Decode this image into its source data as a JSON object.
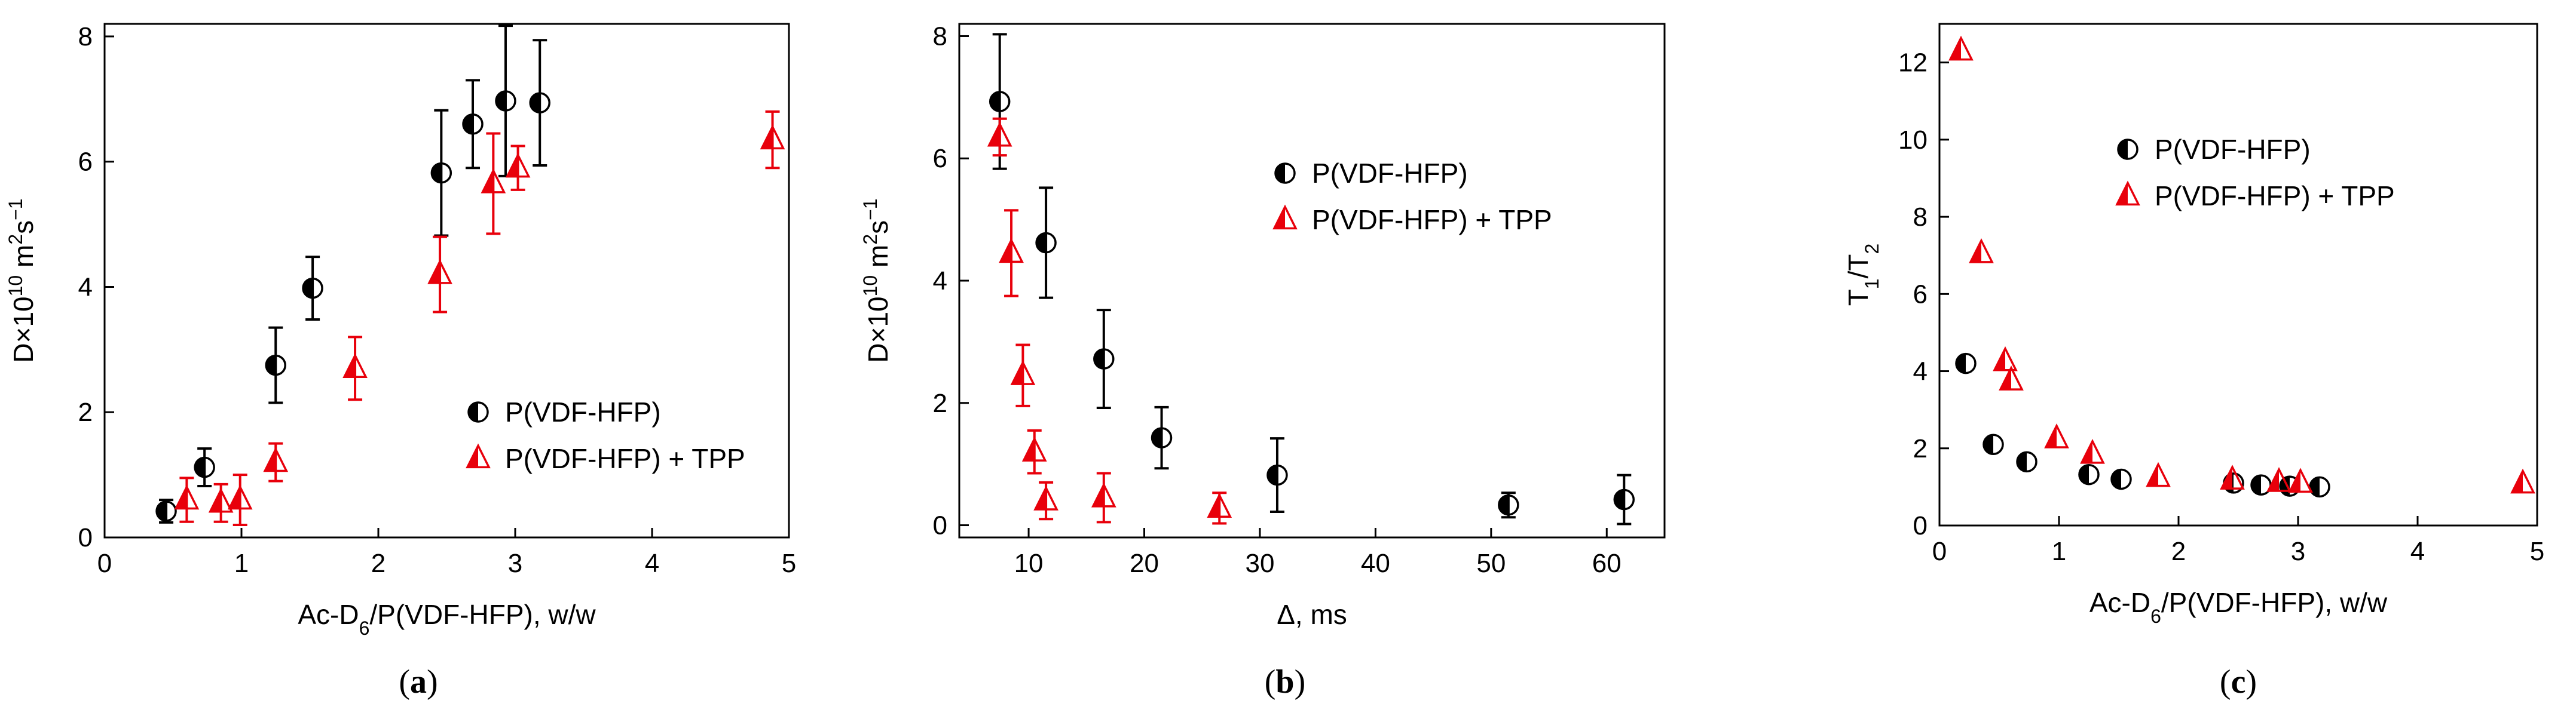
{
  "colors": {
    "black_series": "#000000",
    "red_series": "#e8000b",
    "axis": "#000000"
  },
  "chart_data": [
    {
      "panel": "a",
      "type": "scatter",
      "caption": "a",
      "xlabel": "Ac-D6/P(VDF-HFP), w/w",
      "xlabel_parts": {
        "pre": "Ac-D",
        "sub": "6",
        "post": "/P(VDF-HFP), w/w"
      },
      "ylabel_parts": {
        "pre": "D×10",
        "sup1": "10",
        "mid": " m",
        "sup2": "2",
        "s": "s",
        "sup3": "−1"
      },
      "xlim": [
        0,
        5
      ],
      "ylim": [
        0,
        8.2
      ],
      "xticks": [
        0,
        1,
        2,
        3,
        4,
        5
      ],
      "yticks": [
        0,
        2,
        4,
        6,
        8
      ],
      "legend_position": "middle-right",
      "series": [
        {
          "name": "P(VDF-HFP)",
          "marker": "half-circle",
          "color": "#000000",
          "points": [
            {
              "x": 0.45,
              "y": 0.42,
              "err": 0.18
            },
            {
              "x": 0.73,
              "y": 1.12,
              "err": 0.3
            },
            {
              "x": 1.25,
              "y": 2.75,
              "err": 0.6
            },
            {
              "x": 1.52,
              "y": 3.98,
              "err": 0.5
            },
            {
              "x": 2.46,
              "y": 5.82,
              "err": 1.0
            },
            {
              "x": 2.69,
              "y": 6.6,
              "err": 0.7
            },
            {
              "x": 2.93,
              "y": 6.97,
              "err": 1.2
            },
            {
              "x": 3.18,
              "y": 6.94,
              "err": 1.0
            }
          ]
        },
        {
          "name": "P(VDF-HFP) + TPP",
          "marker": "half-triangle",
          "color": "#e8000b",
          "points": [
            {
              "x": 0.6,
              "y": 0.6,
              "err": 0.35
            },
            {
              "x": 0.85,
              "y": 0.55,
              "err": 0.3
            },
            {
              "x": 0.99,
              "y": 0.6,
              "err": 0.4
            },
            {
              "x": 1.25,
              "y": 1.2,
              "err": 0.3
            },
            {
              "x": 1.83,
              "y": 2.7,
              "err": 0.5
            },
            {
              "x": 2.45,
              "y": 4.2,
              "err": 0.6
            },
            {
              "x": 2.84,
              "y": 5.65,
              "err": 0.8
            },
            {
              "x": 3.02,
              "y": 5.9,
              "err": 0.35
            },
            {
              "x": 4.88,
              "y": 6.35,
              "err": 0.45
            }
          ]
        }
      ]
    },
    {
      "panel": "b",
      "type": "scatter",
      "caption": "b",
      "xlabel": "Δ, ms",
      "ylabel_parts": {
        "pre": "D×10",
        "sup1": "10",
        "mid": " m",
        "sup2": "2",
        "s": "s",
        "sup3": "−1"
      },
      "xlim": [
        4,
        65
      ],
      "ylim": [
        -0.2,
        8.2
      ],
      "xticks": [
        10,
        20,
        30,
        40,
        50,
        60
      ],
      "yticks": [
        0,
        2,
        4,
        6,
        8
      ],
      "legend_position": "top-right",
      "series": [
        {
          "name": "P(VDF-HFP)",
          "marker": "half-circle",
          "color": "#000000",
          "points": [
            {
              "x": 7.5,
              "y": 6.93,
              "err": 1.1
            },
            {
              "x": 11.5,
              "y": 4.62,
              "err": 0.9
            },
            {
              "x": 16.5,
              "y": 2.72,
              "err": 0.8
            },
            {
              "x": 21.5,
              "y": 1.43,
              "err": 0.5
            },
            {
              "x": 31.5,
              "y": 0.82,
              "err": 0.6
            },
            {
              "x": 51.5,
              "y": 0.33,
              "err": 0.2
            },
            {
              "x": 61.5,
              "y": 0.42,
              "err": 0.4
            }
          ]
        },
        {
          "name": "P(VDF-HFP) + TPP",
          "marker": "half-triangle",
          "color": "#e8000b",
          "points": [
            {
              "x": 7.5,
              "y": 6.35,
              "err": 0.3
            },
            {
              "x": 8.5,
              "y": 4.45,
              "err": 0.7
            },
            {
              "x": 9.5,
              "y": 2.45,
              "err": 0.5
            },
            {
              "x": 10.5,
              "y": 1.2,
              "err": 0.35
            },
            {
              "x": 11.5,
              "y": 0.4,
              "err": 0.3
            },
            {
              "x": 16.5,
              "y": 0.45,
              "err": 0.4
            },
            {
              "x": 26.5,
              "y": 0.28,
              "err": 0.25
            }
          ]
        }
      ]
    },
    {
      "panel": "c",
      "type": "scatter",
      "caption": "c",
      "xlabel": "Ac-D6/P(VDF-HFP), w/w",
      "xlabel_parts": {
        "pre": "Ac-D",
        "sub": "6",
        "post": "/P(VDF-HFP), w/w"
      },
      "ylabel": "T1/T2",
      "ylabel_parts": {
        "a": "T",
        "sub1": "1",
        "mid": "/T",
        "sub2": "2"
      },
      "xlim": [
        0,
        5
      ],
      "ylim": [
        0,
        13
      ],
      "xticks": [
        0,
        1,
        2,
        3,
        4,
        5
      ],
      "yticks": [
        0,
        2,
        4,
        6,
        8,
        10,
        12
      ],
      "legend_position": "top-right",
      "series": [
        {
          "name": "P(VDF-HFP)",
          "marker": "half-circle",
          "color": "#000000",
          "points": [
            {
              "x": 0.22,
              "y": 4.2
            },
            {
              "x": 0.45,
              "y": 2.1
            },
            {
              "x": 0.73,
              "y": 1.65
            },
            {
              "x": 1.25,
              "y": 1.32
            },
            {
              "x": 1.52,
              "y": 1.2
            },
            {
              "x": 2.46,
              "y": 1.1
            },
            {
              "x": 2.69,
              "y": 1.05
            },
            {
              "x": 2.93,
              "y": 1.02
            },
            {
              "x": 3.18,
              "y": 1.0
            }
          ]
        },
        {
          "name": "P(VDF-HFP) + TPP",
          "marker": "half-triangle",
          "color": "#e8000b",
          "points": [
            {
              "x": 0.18,
              "y": 12.3
            },
            {
              "x": 0.35,
              "y": 7.05
            },
            {
              "x": 0.55,
              "y": 4.25
            },
            {
              "x": 0.6,
              "y": 3.75
            },
            {
              "x": 0.98,
              "y": 2.25
            },
            {
              "x": 1.28,
              "y": 1.85
            },
            {
              "x": 1.83,
              "y": 1.25
            },
            {
              "x": 2.45,
              "y": 1.18
            },
            {
              "x": 2.84,
              "y": 1.12
            },
            {
              "x": 3.02,
              "y": 1.1
            },
            {
              "x": 4.88,
              "y": 1.08
            }
          ]
        }
      ]
    }
  ]
}
